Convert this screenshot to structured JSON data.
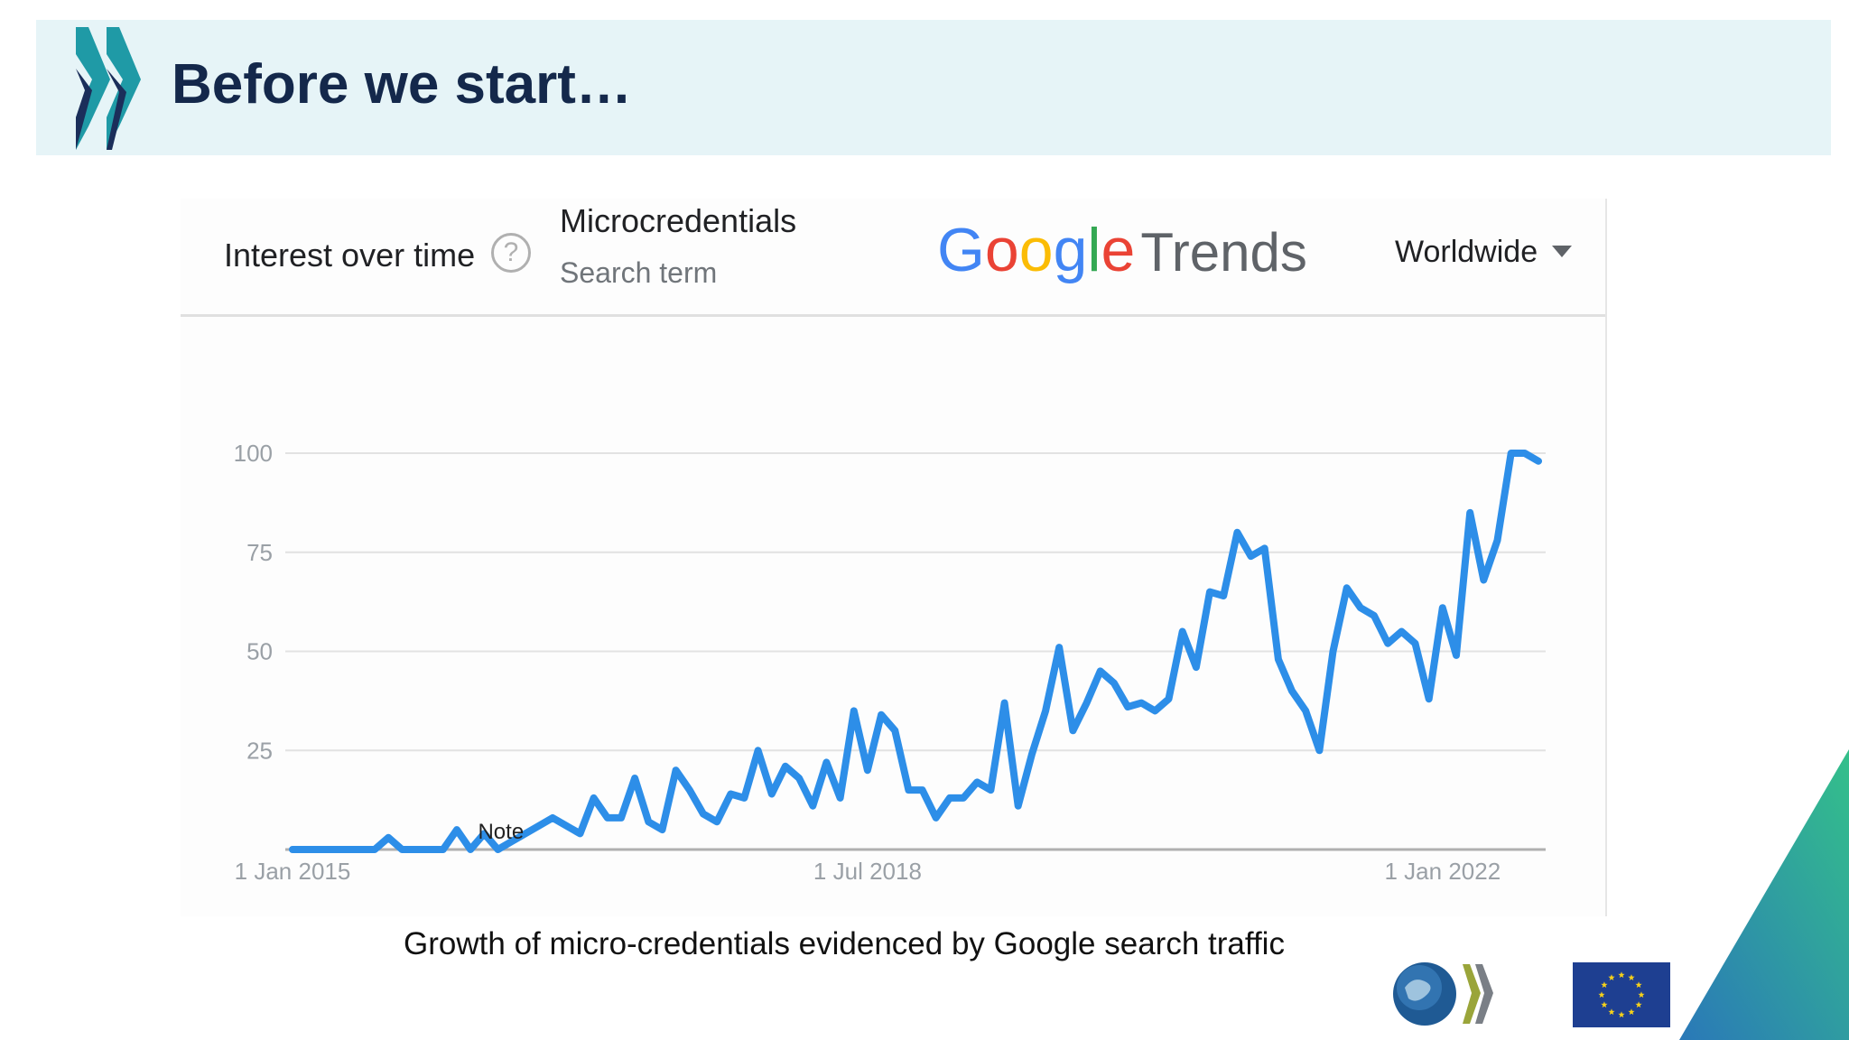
{
  "slide": {
    "title": "Before we start…",
    "caption": "Growth of micro-credentials evidenced by Google search traffic"
  },
  "trends_card": {
    "interest_label": "Interest over time",
    "help_icon": "question-circle-icon",
    "search_term": "Microcredentials",
    "search_term_type": "Search term",
    "logo_google": "Google",
    "logo_trends": "Trends",
    "region": "Worldwide",
    "note_label": "Note"
  },
  "colors": {
    "line": "#2d8ee8",
    "header_band": "#e6f4f7",
    "title": "#14284b",
    "grid": "#e2e2e2"
  },
  "chart_data": {
    "type": "line",
    "title": "",
    "xlabel": "",
    "ylabel": "",
    "ylim": [
      0,
      100
    ],
    "yticks": [
      "100",
      "75",
      "50",
      "25"
    ],
    "xticks": [
      "1 Jan 2015",
      "1 Jul 2018",
      "1 Jan 2022"
    ],
    "x_range": [
      "2015-01",
      "2022-05"
    ],
    "grid": true,
    "legend": "none",
    "series": [
      {
        "values": [
          0,
          0,
          0,
          0,
          0,
          0,
          0,
          3,
          0,
          0,
          0,
          0,
          5,
          0,
          4,
          0,
          2,
          4,
          6,
          8,
          6,
          4,
          13,
          8,
          8,
          18,
          7,
          5,
          20,
          15,
          9,
          7,
          14,
          13,
          25,
          14,
          21,
          18,
          11,
          22,
          13,
          35,
          20,
          34,
          30,
          15,
          15,
          8,
          13,
          13,
          17,
          15,
          37,
          11,
          24,
          35,
          51,
          30,
          37,
          45,
          42,
          36,
          37,
          35,
          38,
          55,
          46,
          65,
          64,
          80,
          74,
          76,
          48,
          40,
          35,
          25,
          50,
          66,
          61,
          59,
          52,
          55,
          52,
          38,
          61,
          49,
          85,
          68,
          78,
          100,
          100,
          98
        ]
      }
    ]
  }
}
